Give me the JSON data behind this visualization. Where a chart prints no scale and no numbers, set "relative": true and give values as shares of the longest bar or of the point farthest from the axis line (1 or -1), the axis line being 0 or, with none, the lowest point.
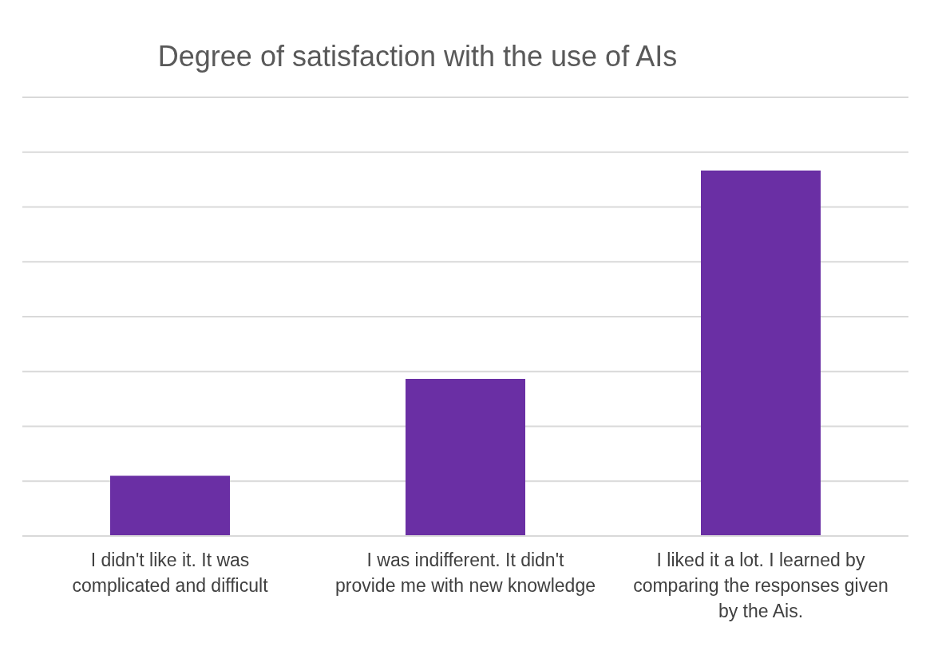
{
  "chart_data": {
    "type": "bar",
    "title": "Degree of satisfaction with the use of AIs",
    "categories": [
      "I didn't like it. It was complicated and difficult",
      "I was indifferent. It didn't provide me with new knowledge",
      "I liked it a lot. I learned by comparing the responses given by the Ais."
    ],
    "values": [
      0.165,
      0.43,
      1
    ],
    "color": "#6a2fa4",
    "relative": true,
    "grid": "y"
  }
}
